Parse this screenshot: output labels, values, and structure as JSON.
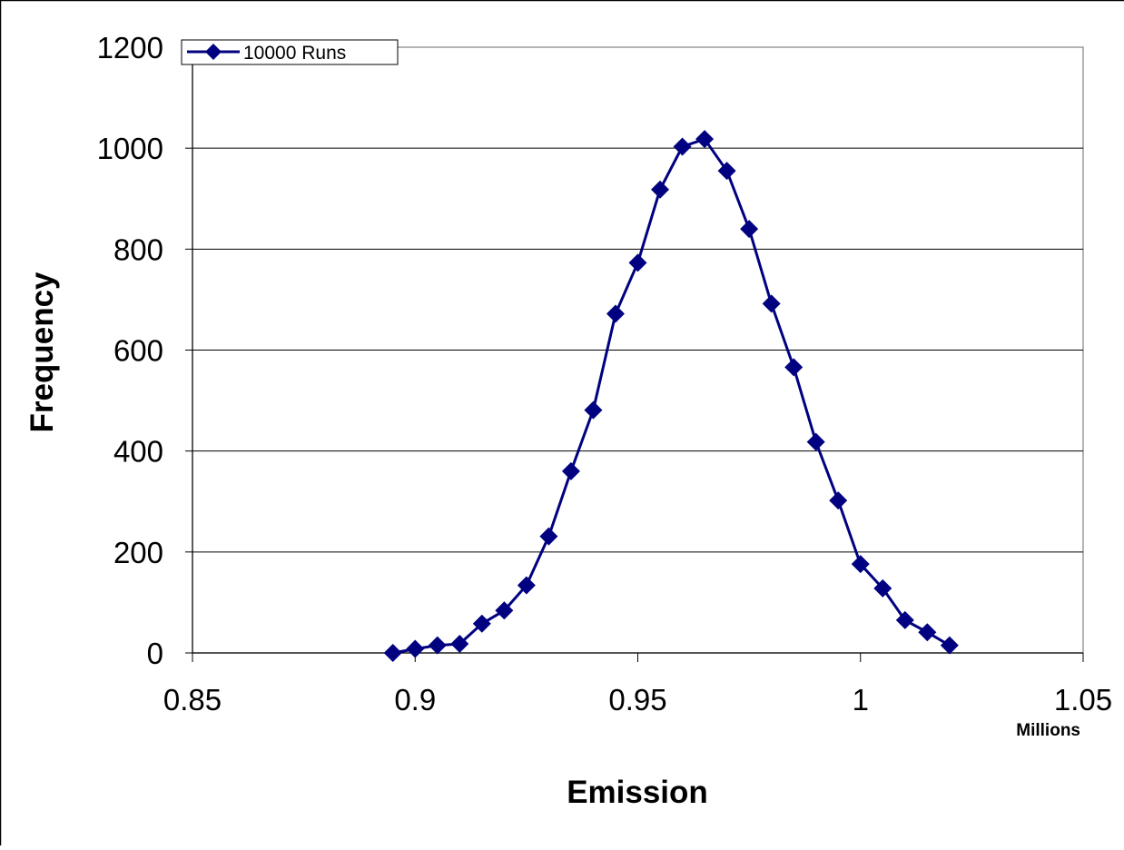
{
  "chart_data": {
    "type": "line",
    "xlabel": "Emission",
    "ylabel": "Frequency",
    "x_unit_label": "Millions",
    "xlim": [
      0.85,
      1.05
    ],
    "ylim": [
      0,
      1200
    ],
    "x_ticks": [
      0.85,
      0.9,
      0.95,
      1,
      1.05
    ],
    "x_tick_labels": [
      "0.85",
      "0.9",
      "0.95",
      "1",
      "1.05"
    ],
    "y_ticks": [
      0,
      200,
      400,
      600,
      800,
      1000,
      1200
    ],
    "y_tick_labels": [
      "0",
      "200",
      "400",
      "600",
      "800",
      "1000",
      "1200"
    ],
    "grid": "horizontal",
    "legend_position": "top-left",
    "series": [
      {
        "name": "10000 Runs",
        "color": "#000080",
        "marker": "diamond",
        "x": [
          0.895,
          0.9,
          0.905,
          0.91,
          0.915,
          0.92,
          0.925,
          0.93,
          0.935,
          0.94,
          0.945,
          0.95,
          0.955,
          0.96,
          0.965,
          0.97,
          0.975,
          0.98,
          0.985,
          0.99,
          0.995,
          1.0,
          1.005,
          1.01,
          1.015,
          1.02
        ],
        "y": [
          0,
          8,
          15,
          18,
          58,
          84,
          134,
          231,
          360,
          481,
          672,
          773,
          918,
          1003,
          1018,
          955,
          840,
          692,
          566,
          418,
          302,
          176,
          128,
          65,
          41,
          15
        ]
      }
    ]
  }
}
